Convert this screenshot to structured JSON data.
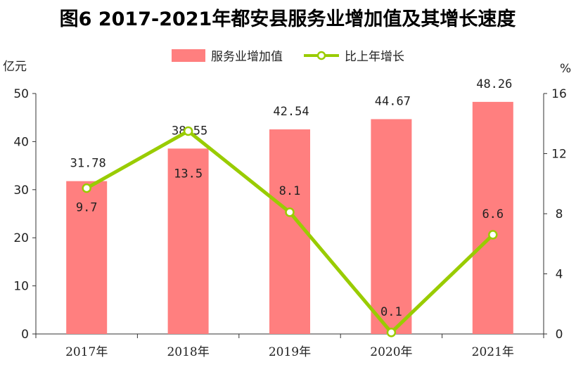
{
  "chart_data": {
    "type": "bar",
    "title": "图6   2017-2021年都安县服务业增加值及其增长速度",
    "categories": [
      "2017年",
      "2018年",
      "2019年",
      "2020年",
      "2021年"
    ],
    "series": [
      {
        "name": "服务业增加值",
        "type": "bar",
        "axis": "left",
        "values": [
          31.78,
          38.55,
          42.54,
          44.67,
          48.26
        ],
        "labels": [
          "31.78",
          "38.55",
          "42.54",
          "44.67",
          "48.26"
        ],
        "color": "#ff7f7f"
      },
      {
        "name": "比上年增长",
        "type": "line",
        "axis": "right",
        "values": [
          9.7,
          13.5,
          8.1,
          0.1,
          6.6
        ],
        "labels": [
          "9.7",
          "13.5",
          "8.1",
          "0.1",
          "6.6"
        ],
        "color": "#99cc00"
      }
    ],
    "y_left": {
      "unit": "亿元",
      "ylim": [
        0,
        50
      ],
      "ticks": [
        "0",
        "10",
        "20",
        "30",
        "40",
        "50"
      ]
    },
    "y_right": {
      "unit": "%",
      "ylim": [
        0,
        16
      ],
      "ticks": [
        "0",
        "4",
        "8",
        "12",
        "16"
      ]
    },
    "legend_position": "top-center",
    "grid": false
  }
}
